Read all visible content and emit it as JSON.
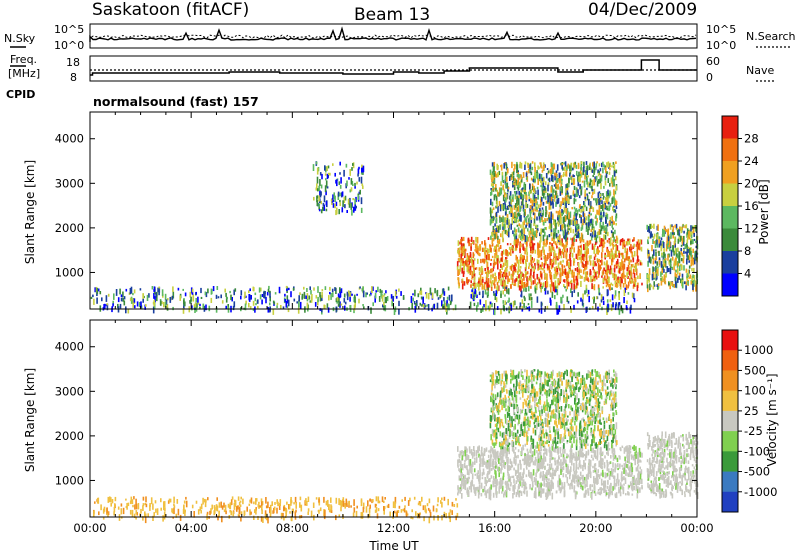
{
  "header": {
    "station": "Saskatoon (fitACF)",
    "beam": "Beam 13",
    "date": "04/Dec/2009"
  },
  "noise_panel": {
    "left_label": "N.Sky",
    "right_label": "N.Search",
    "left_ticks": [
      "10^5",
      "10^0"
    ],
    "right_ticks": [
      "10^5",
      "10^0"
    ]
  },
  "freq_panel": {
    "left_label_1": "Freq.",
    "left_label_2": "[MHz]",
    "right_label": "Nave",
    "left_ticks": [
      "18",
      "8"
    ],
    "right_ticks": [
      "60",
      "0"
    ]
  },
  "cpid": {
    "label": "CPID",
    "value": "normalsound (fast) 157"
  },
  "colors": {
    "background": "#ffffff",
    "ground_scatter": "#c8c8c0"
  },
  "chart_data": [
    {
      "type": "heatmap",
      "title": "Power",
      "ylabel": "Slant Range [km]",
      "xlabel": "Time UT",
      "x_ticks": [
        "00:00",
        "04:00",
        "08:00",
        "12:00",
        "16:00",
        "20:00",
        "00:00"
      ],
      "x_range_hours": [
        0,
        24
      ],
      "y_ticks": [
        1000,
        2000,
        3000,
        4000
      ],
      "ylim": [
        180,
        4600
      ],
      "colorbar": {
        "label": "Power [dB]",
        "ticks": [
          "4",
          "8",
          "12",
          "16",
          "20",
          "24",
          "28"
        ],
        "colors": [
          "#0000ff",
          "#1a3f9e",
          "#3a8a3a",
          "#5cb860",
          "#c8d040",
          "#f0a020",
          "#f07010",
          "#e82010"
        ]
      },
      "regions": [
        {
          "t0": 0.0,
          "t1": 14.5,
          "r0": 180,
          "r1": 700,
          "level": "low"
        },
        {
          "t0": 8.8,
          "t1": 10.8,
          "r0": 2400,
          "r1": 3500,
          "level": "low"
        },
        {
          "t0": 14.5,
          "t1": 21.8,
          "r0": 700,
          "r1": 1800,
          "level": "high"
        },
        {
          "t0": 15.8,
          "t1": 20.8,
          "r0": 1800,
          "r1": 3500,
          "level": "mid"
        },
        {
          "t0": 22.0,
          "t1": 24.0,
          "r0": 700,
          "r1": 2100,
          "level": "mid"
        },
        {
          "t0": 15.0,
          "t1": 21.5,
          "r0": 180,
          "r1": 700,
          "level": "low"
        }
      ]
    },
    {
      "type": "heatmap",
      "title": "Velocity",
      "ylabel": "Slant Range [km]",
      "xlabel": "Time UT",
      "x_ticks": [
        "00:00",
        "04:00",
        "08:00",
        "12:00",
        "16:00",
        "20:00",
        "00:00"
      ],
      "x_range_hours": [
        0,
        24
      ],
      "y_ticks": [
        1000,
        2000,
        3000,
        4000
      ],
      "ylim": [
        180,
        4600
      ],
      "colorbar": {
        "label": "Velocity [m s⁻¹]",
        "ticks": [
          "1000",
          "500",
          "100",
          "25",
          "-25",
          "-100",
          "-500",
          "-1000"
        ],
        "colors": [
          "#2040c0",
          "#3a7ac0",
          "#3a9a3a",
          "#80d050",
          "#c8c8c0",
          "#f0c040",
          "#f09020",
          "#f06010",
          "#e81010"
        ]
      },
      "regions": [
        {
          "t0": 0.0,
          "t1": 14.5,
          "r0": 180,
          "r1": 650,
          "level": "slow-away"
        },
        {
          "t0": 14.5,
          "t1": 21.8,
          "r0": 700,
          "r1": 1800,
          "level": "ground"
        },
        {
          "t0": 15.8,
          "t1": 20.8,
          "r0": 1800,
          "r1": 3500,
          "level": "mixed"
        },
        {
          "t0": 22.0,
          "t1": 24.0,
          "r0": 700,
          "r1": 2100,
          "level": "ground"
        }
      ]
    }
  ]
}
